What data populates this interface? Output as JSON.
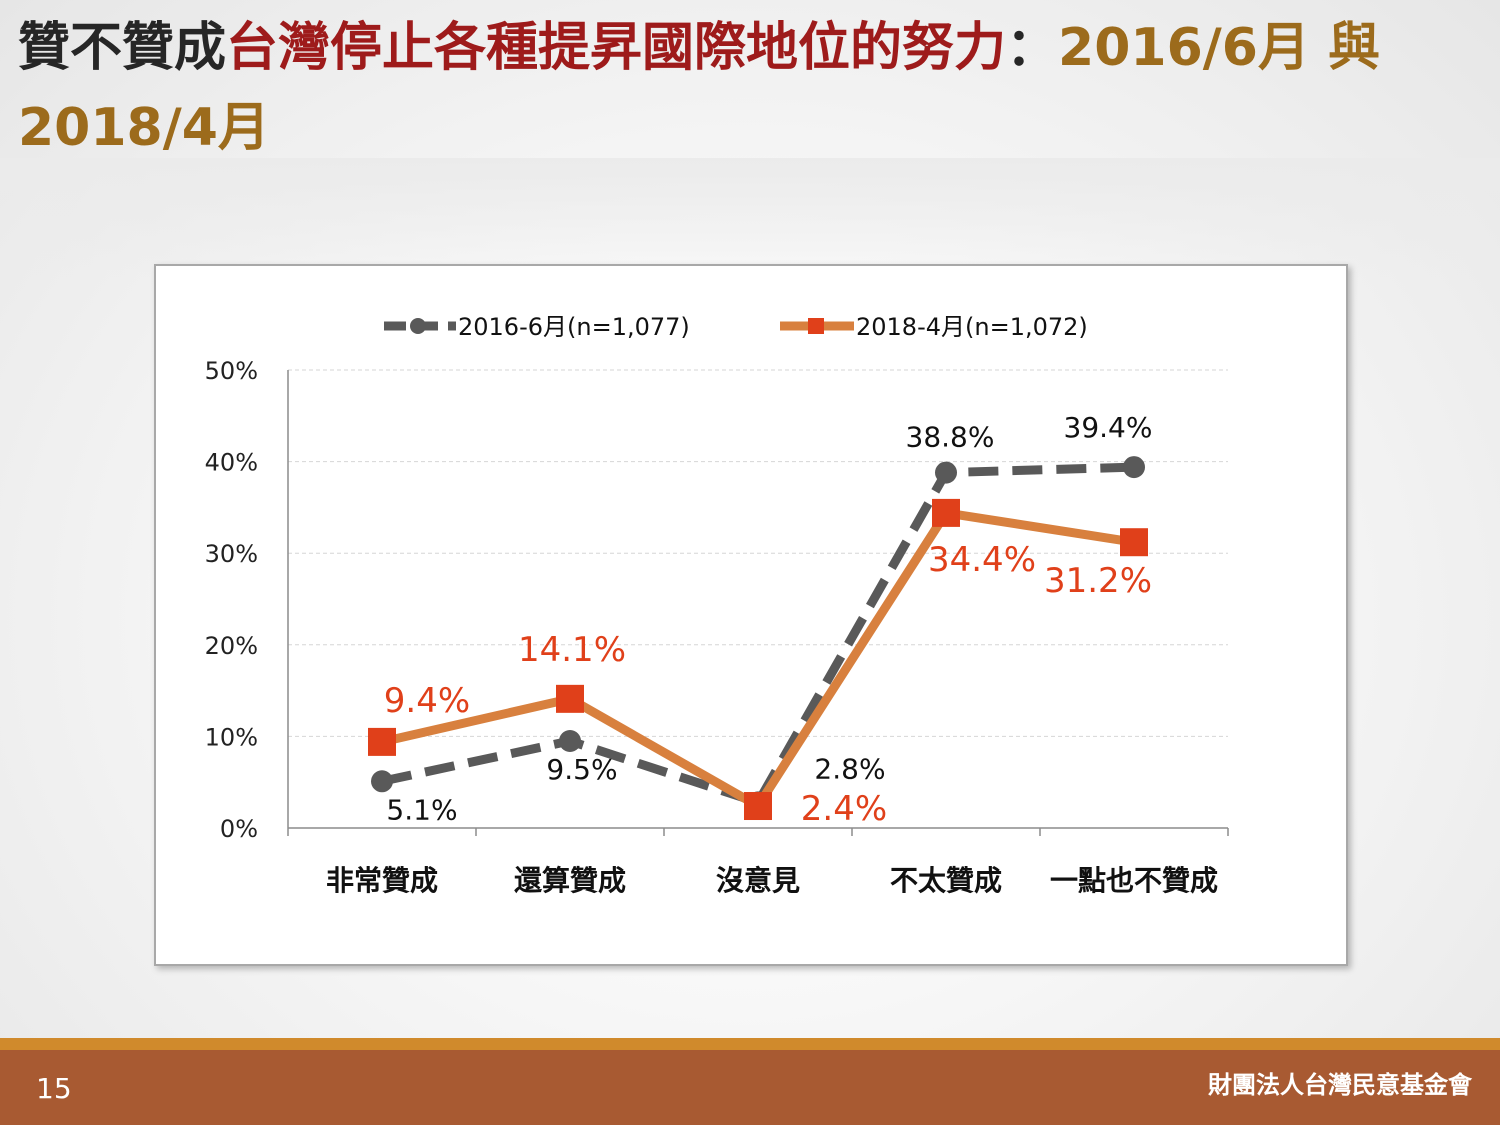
{
  "slide": {
    "title_part1": "贊不贊成",
    "title_part2": "台灣停止各種提昇國際地位的努力",
    "title_part3": "：",
    "title_part4": "2016/6月 與 2018/4月",
    "page_number": "15",
    "organization": "財團法人台灣民意基金會"
  },
  "colors": {
    "series_2016": "#595959",
    "series_2018": "#d8803e",
    "marker_2018": "#e0401a",
    "label_2018": "#e0401a"
  },
  "chart_data": {
    "type": "line",
    "categories": [
      "非常贊成",
      "還算贊成",
      "沒意見",
      "不太贊成",
      "一點也不贊成"
    ],
    "ylim": [
      0,
      50
    ],
    "yticks": [
      "0%",
      "10%",
      "20%",
      "30%",
      "40%",
      "50%"
    ],
    "ytick_values": [
      0,
      10,
      20,
      30,
      40,
      50
    ],
    "grid": true,
    "legend_position": "top",
    "series": [
      {
        "name": "2016-6月(n=1,077)",
        "values": [
          5.1,
          9.5,
          2.8,
          38.8,
          39.4
        ],
        "labels": [
          "5.1%",
          "9.5%",
          "2.8%",
          "38.8%",
          "39.4%"
        ]
      },
      {
        "name": "2018-4月(n=1,072)",
        "values": [
          9.4,
          14.1,
          2.4,
          34.4,
          31.2
        ],
        "labels": [
          "9.4%",
          "14.1%",
          "2.4%",
          "34.4%",
          "31.2%"
        ]
      }
    ]
  }
}
